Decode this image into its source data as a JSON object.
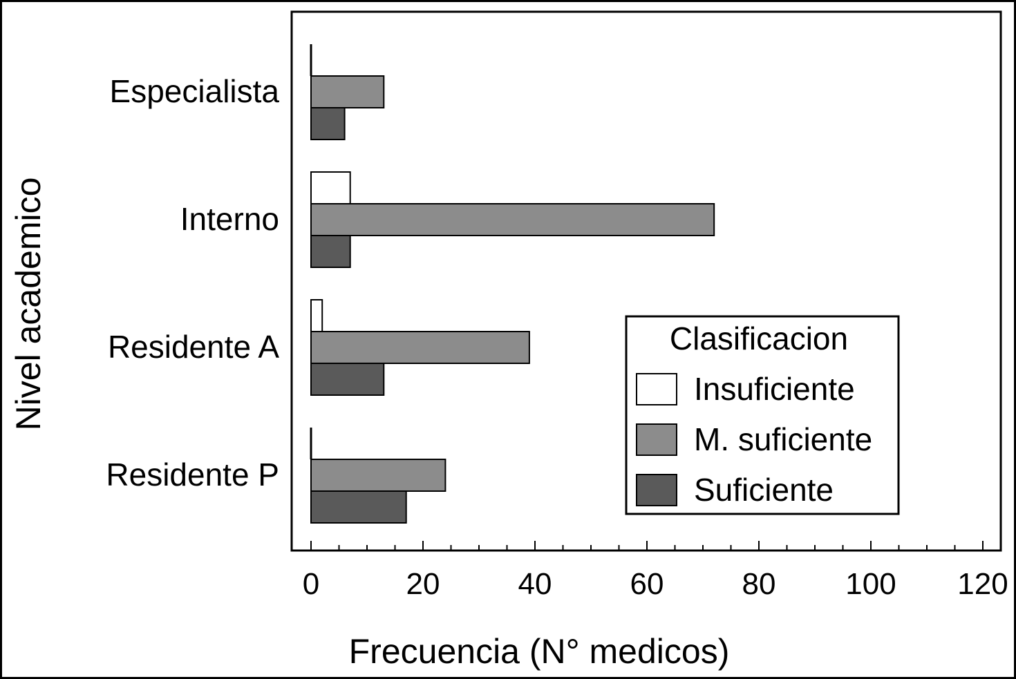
{
  "chart_data": {
    "type": "bar",
    "orientation": "horizontal",
    "ylabel": "Nivel academico",
    "xlabel": "Frecuencia (N° medicos)",
    "xlim": [
      0,
      120
    ],
    "xticks": [
      0,
      20,
      40,
      60,
      80,
      100,
      120
    ],
    "grid": false,
    "categories": [
      "Especialista",
      "Interno",
      "Residente A",
      "Residente P"
    ],
    "legend": {
      "title": "Clasificacion",
      "position": "lower-right"
    },
    "series": [
      {
        "name": "Insuficiente",
        "color": "#ffffff",
        "values": [
          0,
          7,
          2,
          0
        ]
      },
      {
        "name": "M. suficiente",
        "color": "#8c8c8c",
        "values": [
          13,
          72,
          39,
          24
        ]
      },
      {
        "name": "Suficiente",
        "color": "#5a5a5a",
        "values": [
          6,
          7,
          13,
          17
        ]
      }
    ]
  }
}
